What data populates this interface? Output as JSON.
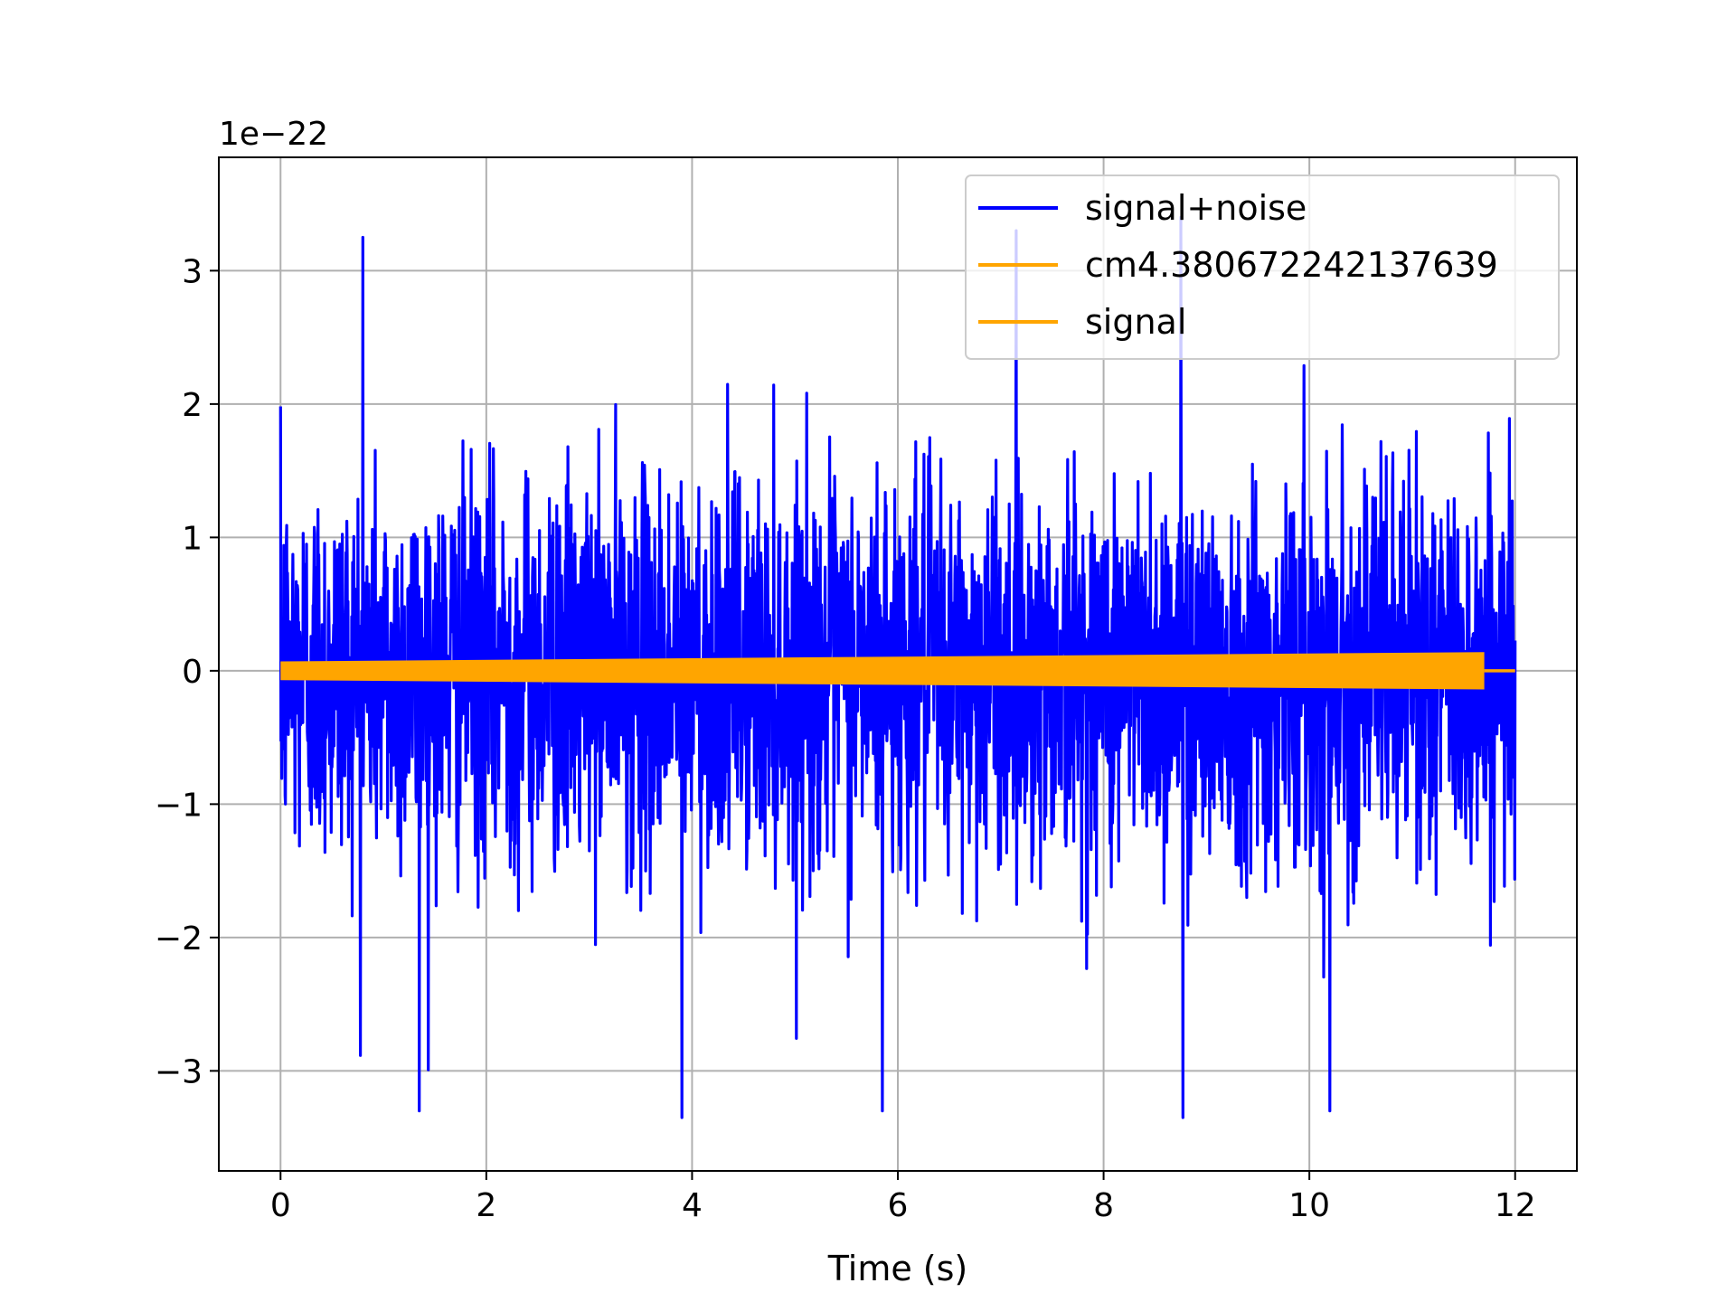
{
  "chart_data": {
    "type": "line",
    "title": "",
    "xlabel": "Time (s)",
    "ylabel": "",
    "offset_label": "1e−22",
    "y_scale_factor": 1e-22,
    "xlim": [
      -0.6,
      12.6
    ],
    "ylim": [
      -3.75,
      3.85
    ],
    "grid": true,
    "x_ticks": [
      0,
      2,
      4,
      6,
      8,
      10,
      12
    ],
    "x_tick_labels": [
      "0",
      "2",
      "4",
      "6",
      "8",
      "10",
      "12"
    ],
    "y_ticks": [
      -3,
      -2,
      -1,
      0,
      1,
      2,
      3
    ],
    "y_tick_labels": [
      "−3",
      "−2",
      "−1",
      "0",
      "1",
      "2",
      "3"
    ],
    "legend_position": "top-right",
    "series": [
      {
        "name": "signal+noise",
        "color": "#0000ff",
        "x_range": [
          0,
          12
        ],
        "typical_band": [
          -1.5,
          1.5
        ],
        "peak_max": 3.45,
        "peak_min": -3.4,
        "labeled_spikes": [
          {
            "x": 0.8,
            "y": 3.25
          },
          {
            "x": 1.35,
            "y": -3.3
          },
          {
            "x": 3.9,
            "y": -3.35
          },
          {
            "x": 5.85,
            "y": -3.3
          },
          {
            "x": 7.15,
            "y": 3.3
          },
          {
            "x": 8.75,
            "y": 3.4
          },
          {
            "x": 8.77,
            "y": -3.35
          },
          {
            "x": 10.2,
            "y": -3.3
          }
        ]
      },
      {
        "name": "cm4.380672242137639",
        "color": "#ffa500",
        "x_range": [
          0,
          11.7
        ],
        "amplitude_start": 0.07,
        "amplitude_end": 0.14
      },
      {
        "name": "signal",
        "color": "#ffa500",
        "x_range": [
          0,
          12
        ],
        "values_after_merger": 0
      }
    ]
  }
}
